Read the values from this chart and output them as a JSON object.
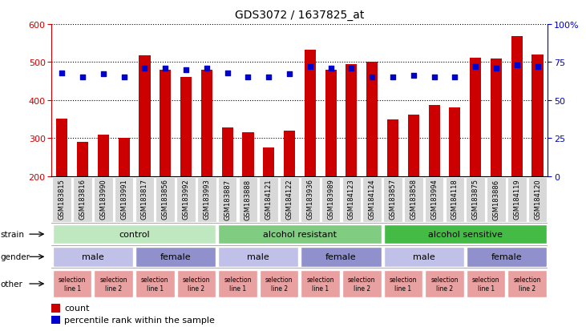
{
  "title": "GDS3072 / 1637825_at",
  "samples": [
    "GSM183815",
    "GSM183816",
    "GSM183990",
    "GSM183991",
    "GSM183817",
    "GSM183856",
    "GSM183992",
    "GSM183993",
    "GSM183887",
    "GSM183888",
    "GSM184121",
    "GSM184122",
    "GSM183936",
    "GSM183989",
    "GSM184123",
    "GSM184124",
    "GSM183857",
    "GSM183858",
    "GSM183994",
    "GSM184118",
    "GSM183875",
    "GSM183886",
    "GSM184119",
    "GSM184120"
  ],
  "bar_values": [
    352,
    291,
    309,
    300,
    518,
    479,
    461,
    479,
    329,
    315,
    276,
    320,
    533,
    479,
    494,
    500,
    350,
    362,
    388,
    380,
    510,
    509,
    567,
    519
  ],
  "percentile_values": [
    68,
    65,
    67,
    65,
    71,
    71,
    70,
    71,
    68,
    65,
    65,
    67,
    72,
    71,
    71,
    65,
    65,
    66,
    65,
    65,
    72,
    71,
    73,
    72
  ],
  "bar_bottom": 200,
  "ylim_left": [
    200,
    600
  ],
  "ylim_right": [
    0,
    100
  ],
  "yticks_left": [
    200,
    300,
    400,
    500,
    600
  ],
  "yticks_right": [
    0,
    25,
    50,
    75,
    100
  ],
  "bar_color": "#cc0000",
  "dot_color": "#0000cc",
  "strain_groups": [
    {
      "label": "control",
      "start": 0,
      "end": 7,
      "color": "#c0e8c0"
    },
    {
      "label": "alcohol resistant",
      "start": 8,
      "end": 15,
      "color": "#80cc80"
    },
    {
      "label": "alcohol sensitive",
      "start": 16,
      "end": 23,
      "color": "#44bb44"
    }
  ],
  "gender_groups": [
    {
      "label": "male",
      "start": 0,
      "end": 3,
      "color": "#c0c0e8"
    },
    {
      "label": "female",
      "start": 4,
      "end": 7,
      "color": "#9090cc"
    },
    {
      "label": "male",
      "start": 8,
      "end": 11,
      "color": "#c0c0e8"
    },
    {
      "label": "female",
      "start": 12,
      "end": 15,
      "color": "#9090cc"
    },
    {
      "label": "male",
      "start": 16,
      "end": 19,
      "color": "#c0c0e8"
    },
    {
      "label": "female",
      "start": 20,
      "end": 23,
      "color": "#9090cc"
    }
  ],
  "other_groups": [
    {
      "label": "selection\nline 1",
      "start": 0,
      "end": 1,
      "color": "#e8a0a0"
    },
    {
      "label": "selection\nline 2",
      "start": 2,
      "end": 3,
      "color": "#e8a0a0"
    },
    {
      "label": "selection\nline 1",
      "start": 4,
      "end": 5,
      "color": "#e8a0a0"
    },
    {
      "label": "selection\nline 2",
      "start": 6,
      "end": 7,
      "color": "#e8a0a0"
    },
    {
      "label": "selection\nline 1",
      "start": 8,
      "end": 9,
      "color": "#e8a0a0"
    },
    {
      "label": "selection\nline 2",
      "start": 10,
      "end": 11,
      "color": "#e8a0a0"
    },
    {
      "label": "selection\nline 1",
      "start": 12,
      "end": 13,
      "color": "#e8a0a0"
    },
    {
      "label": "selection\nline 2",
      "start": 14,
      "end": 15,
      "color": "#e8a0a0"
    },
    {
      "label": "selection\nline 1",
      "start": 16,
      "end": 17,
      "color": "#e8a0a0"
    },
    {
      "label": "selection\nline 2",
      "start": 18,
      "end": 19,
      "color": "#e8a0a0"
    },
    {
      "label": "selection\nline 1",
      "start": 20,
      "end": 21,
      "color": "#e8a0a0"
    },
    {
      "label": "selection\nline 2",
      "start": 22,
      "end": 23,
      "color": "#e8a0a0"
    }
  ],
  "xlabel_bg_color": "#d8d8d8",
  "left_axis_color": "#cc0000",
  "right_axis_color": "#0000cc",
  "legend_count_color": "#cc0000",
  "legend_dot_color": "#0000cc",
  "row_border_color": "#888888",
  "xlabel_fontsize": 6.0,
  "annotation_fontsize": 8.0,
  "other_fontsize": 6.0
}
